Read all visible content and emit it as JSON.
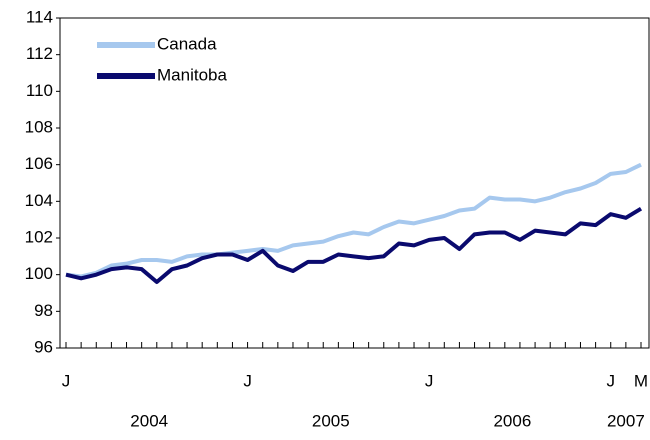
{
  "chart_data": {
    "type": "line",
    "categories": [
      "J",
      null,
      null,
      null,
      null,
      null,
      null,
      null,
      null,
      null,
      null,
      null,
      "J",
      null,
      null,
      null,
      null,
      null,
      null,
      null,
      null,
      null,
      null,
      null,
      "J",
      null,
      null,
      null,
      null,
      null,
      null,
      null,
      null,
      null,
      null,
      null,
      "J",
      null,
      "M"
    ],
    "year_labels": [
      "2004",
      "2005",
      "2006",
      "2007"
    ],
    "series": [
      {
        "name": "Canada",
        "color": "#a6c8ee",
        "values": [
          100.0,
          99.9,
          100.1,
          100.5,
          100.6,
          100.8,
          100.8,
          100.7,
          101.0,
          101.1,
          101.1,
          101.2,
          101.3,
          101.4,
          101.3,
          101.6,
          101.7,
          101.8,
          102.1,
          102.3,
          102.2,
          102.6,
          102.9,
          102.8,
          103.0,
          103.2,
          103.5,
          103.6,
          104.2,
          104.1,
          104.1,
          104.0,
          104.2,
          104.5,
          104.7,
          105.0,
          105.5,
          105.6,
          106.0
        ]
      },
      {
        "name": "Manitoba",
        "color": "#0a0a6e",
        "values": [
          100.0,
          99.8,
          100.0,
          100.3,
          100.4,
          100.3,
          99.6,
          100.3,
          100.5,
          100.9,
          101.1,
          101.1,
          100.8,
          101.3,
          100.5,
          100.2,
          100.7,
          100.7,
          101.1,
          101.0,
          100.9,
          101.0,
          101.7,
          101.6,
          101.9,
          102.0,
          101.4,
          102.2,
          102.3,
          102.3,
          101.9,
          102.4,
          102.3,
          102.2,
          102.8,
          102.7,
          103.3,
          103.1,
          103.6
        ]
      }
    ],
    "ylim": [
      96,
      114
    ],
    "yticks": [
      96,
      98,
      100,
      102,
      104,
      106,
      108,
      110,
      112,
      114
    ],
    "grid": false,
    "legend": "top-left"
  }
}
